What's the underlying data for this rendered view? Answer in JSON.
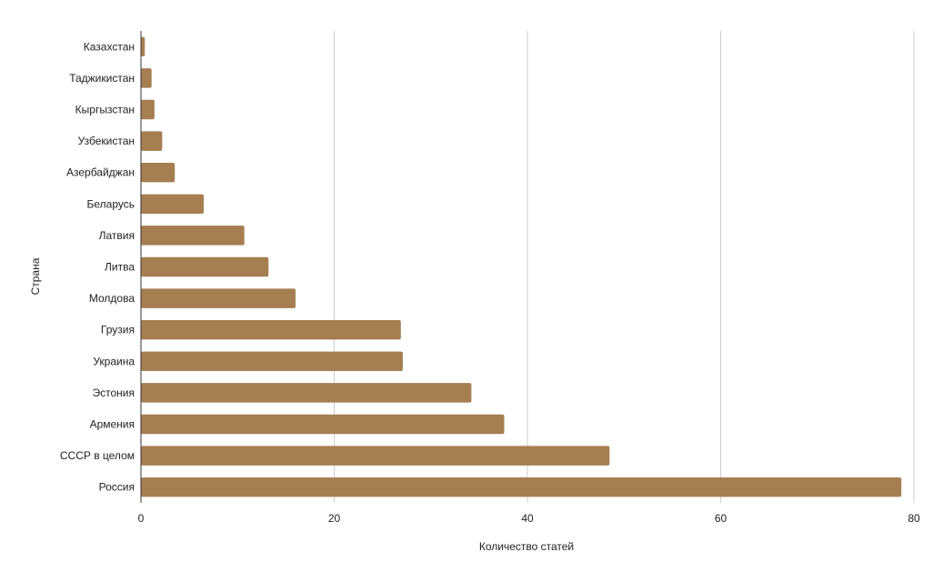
{
  "chart_data": {
    "type": "bar",
    "orientation": "horizontal",
    "categories": [
      "Казахстан",
      "Таджикистан",
      "Кыргызстан",
      "Узбекистан",
      "Азербайджан",
      "Беларусь",
      "Латвия",
      "Литва",
      "Молдова",
      "Грузия",
      "Украина",
      "Эстония",
      "Армения",
      "СССР в целом",
      "Россия"
    ],
    "values": [
      0.4,
      1.1,
      1.4,
      2.2,
      3.5,
      6.5,
      10.7,
      13.2,
      16.0,
      26.9,
      27.1,
      34.2,
      37.6,
      48.5,
      78.7
    ],
    "xlabel": "Количество статей",
    "ylabel": "Страна",
    "xlim": [
      0,
      80
    ],
    "xticks": [
      "0",
      "20",
      "40",
      "60",
      "80"
    ],
    "grid": true,
    "bar_color": "#a57e51",
    "grid_color": "#cccccc",
    "axis_color": "#333333"
  }
}
